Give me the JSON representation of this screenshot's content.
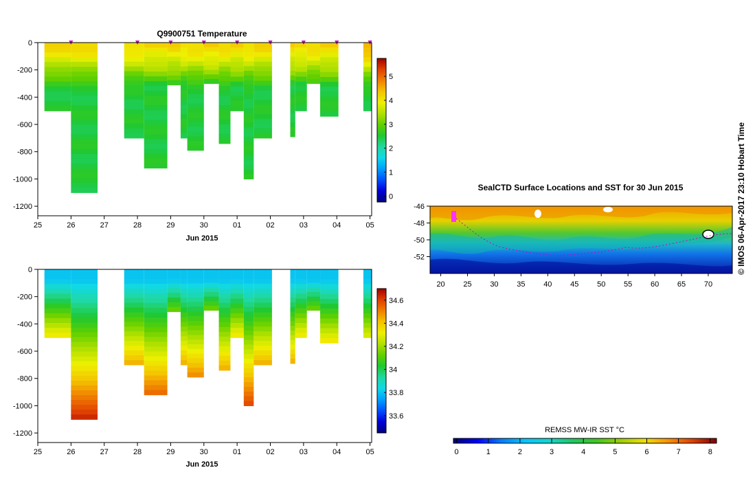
{
  "colors": {
    "cmap": [
      "#00007f",
      "#0000d8",
      "#0050ff",
      "#00a0ff",
      "#10d8e8",
      "#20d8a0",
      "#1fc832",
      "#60d000",
      "#b0e000",
      "#eef000",
      "#f4c400",
      "#f08000",
      "#e04000",
      "#a00000"
    ],
    "sst_cmap": [
      "#00007f",
      "#0000ff",
      "#0080ff",
      "#00c8ff",
      "#10d8d0",
      "#20c860",
      "#40c820",
      "#a0d000",
      "#f0e000",
      "#ff9000",
      "#e04000",
      "#800000"
    ],
    "profile_marker": "#cc00cc"
  },
  "chart_data": [
    {
      "id": "temperature",
      "type": "heatmap",
      "title": "Q9900751  Temperature",
      "xlabel": "Jun 2015",
      "x_ticks": [
        "25",
        "26",
        "27",
        "28",
        "29",
        "30",
        "01",
        "02",
        "03",
        "04",
        "05"
      ],
      "x_range": [
        25,
        35.05
      ],
      "y_ticks": [
        "0",
        "-200",
        "-400",
        "-600",
        "-800",
        "-1000",
        "-1200"
      ],
      "y_range": [
        -1270,
        0
      ],
      "colorbar": {
        "ticks": [
          "0",
          "1",
          "2",
          "3",
          "4",
          "5"
        ],
        "range": [
          -0.25,
          5.75
        ]
      },
      "profile_days": [
        26,
        28,
        29,
        30,
        31,
        32,
        33,
        34,
        35
      ],
      "profiles": [
        {
          "start": 25.2,
          "end": 26.0,
          "depth": 500,
          "surface": 4.2,
          "deep": 2.5
        },
        {
          "start": 26.0,
          "end": 26.8,
          "depth": 1100,
          "surface": 4.2,
          "deep": 2.5
        },
        {
          "start": 27.6,
          "end": 28.2,
          "depth": 700,
          "surface": 4.2,
          "deep": 2.5
        },
        {
          "start": 28.2,
          "end": 28.9,
          "depth": 920,
          "surface": 4.2,
          "deep": 2.5
        },
        {
          "start": 28.9,
          "end": 29.3,
          "depth": 310,
          "surface": 4.2,
          "deep": 2.5
        },
        {
          "start": 29.3,
          "end": 29.5,
          "depth": 700,
          "surface": 4.2,
          "deep": 2.5
        },
        {
          "start": 29.5,
          "end": 30.0,
          "depth": 790,
          "surface": 4.2,
          "deep": 2.5
        },
        {
          "start": 30.0,
          "end": 30.45,
          "depth": 300,
          "surface": 4.3,
          "deep": 2.5
        },
        {
          "start": 30.45,
          "end": 30.8,
          "depth": 740,
          "surface": 4.2,
          "deep": 2.5
        },
        {
          "start": 30.8,
          "end": 31.2,
          "depth": 500,
          "surface": 4.2,
          "deep": 2.5
        },
        {
          "start": 31.2,
          "end": 31.5,
          "depth": 1000,
          "surface": 4.2,
          "deep": 2.5
        },
        {
          "start": 31.5,
          "end": 32.05,
          "depth": 700,
          "surface": 4.2,
          "deep": 2.5
        },
        {
          "start": 32.6,
          "end": 32.75,
          "depth": 690,
          "surface": 4.2,
          "deep": 2.5
        },
        {
          "start": 32.75,
          "end": 33.1,
          "depth": 500,
          "surface": 4.2,
          "deep": 2.5
        },
        {
          "start": 33.1,
          "end": 33.5,
          "depth": 300,
          "surface": 4.2,
          "deep": 2.5
        },
        {
          "start": 33.5,
          "end": 34.05,
          "depth": 540,
          "surface": 4.2,
          "deep": 2.5
        },
        {
          "start": 34.8,
          "end": 35.05,
          "depth": 500,
          "surface": 4.6,
          "deep": 2.5
        }
      ]
    },
    {
      "id": "salinity",
      "type": "heatmap",
      "title": "",
      "xlabel": "Jun 2015",
      "x_ticks": [
        "25",
        "26",
        "27",
        "28",
        "29",
        "30",
        "01",
        "02",
        "03",
        "04",
        "05"
      ],
      "x_range": [
        25,
        35.05
      ],
      "y_ticks": [
        "0",
        "-200",
        "-400",
        "-600",
        "-800",
        "-1000",
        "-1200"
      ],
      "y_range": [
        -1270,
        0
      ],
      "colorbar": {
        "ticks": [
          "33.6",
          "33.8",
          "34",
          "34.2",
          "34.4",
          "34.6"
        ],
        "range": [
          33.45,
          34.7
        ]
      },
      "profiles": [
        {
          "start": 25.2,
          "end": 26.0,
          "depth": 500,
          "surface": 33.8,
          "deep": 34.35
        },
        {
          "start": 26.0,
          "end": 26.8,
          "depth": 1100,
          "surface": 33.8,
          "deep": 34.65
        },
        {
          "start": 27.6,
          "end": 28.2,
          "depth": 700,
          "surface": 33.8,
          "deep": 34.45
        },
        {
          "start": 28.2,
          "end": 28.9,
          "depth": 920,
          "surface": 33.8,
          "deep": 34.55
        },
        {
          "start": 28.9,
          "end": 29.3,
          "depth": 310,
          "surface": 33.8,
          "deep": 34.15
        },
        {
          "start": 29.3,
          "end": 29.5,
          "depth": 700,
          "surface": 33.8,
          "deep": 34.45
        },
        {
          "start": 29.5,
          "end": 30.0,
          "depth": 790,
          "surface": 33.8,
          "deep": 34.5
        },
        {
          "start": 30.0,
          "end": 30.45,
          "depth": 300,
          "surface": 33.8,
          "deep": 34.15
        },
        {
          "start": 30.45,
          "end": 30.8,
          "depth": 740,
          "surface": 33.8,
          "deep": 34.45
        },
        {
          "start": 30.8,
          "end": 31.2,
          "depth": 500,
          "surface": 33.8,
          "deep": 34.35
        },
        {
          "start": 31.2,
          "end": 31.5,
          "depth": 1000,
          "surface": 33.8,
          "deep": 34.6
        },
        {
          "start": 31.5,
          "end": 32.05,
          "depth": 700,
          "surface": 33.8,
          "deep": 34.45
        },
        {
          "start": 32.6,
          "end": 32.75,
          "depth": 690,
          "surface": 33.8,
          "deep": 34.45
        },
        {
          "start": 32.75,
          "end": 33.1,
          "depth": 500,
          "surface": 33.8,
          "deep": 34.35
        },
        {
          "start": 33.1,
          "end": 33.5,
          "depth": 300,
          "surface": 33.8,
          "deep": 34.15
        },
        {
          "start": 33.5,
          "end": 34.05,
          "depth": 540,
          "surface": 33.8,
          "deep": 34.35
        },
        {
          "start": 34.8,
          "end": 35.05,
          "depth": 500,
          "surface": 33.8,
          "deep": 34.3
        }
      ]
    },
    {
      "id": "surface-map",
      "type": "heatmap",
      "title": "SealCTD Surface Locations and SST for 30 Jun 2015",
      "x_ticks": [
        "20",
        "25",
        "30",
        "35",
        "40",
        "45",
        "50",
        "55",
        "60",
        "65",
        "70"
      ],
      "x_range": [
        18,
        74.5
      ],
      "y_ticks": [
        "-46",
        "-48",
        "-50",
        "-52"
      ],
      "y_range": [
        -54,
        -46
      ],
      "colorbar": {
        "label": "REMSS MW-IR SST °C",
        "ticks": [
          "0",
          "1",
          "2",
          "3",
          "4",
          "5",
          "6",
          "7",
          "8"
        ],
        "range": [
          -0.1,
          8.2
        ]
      }
    }
  ],
  "credit": "© IMOS 06-Apr-2017 23:10 Hobart Time"
}
